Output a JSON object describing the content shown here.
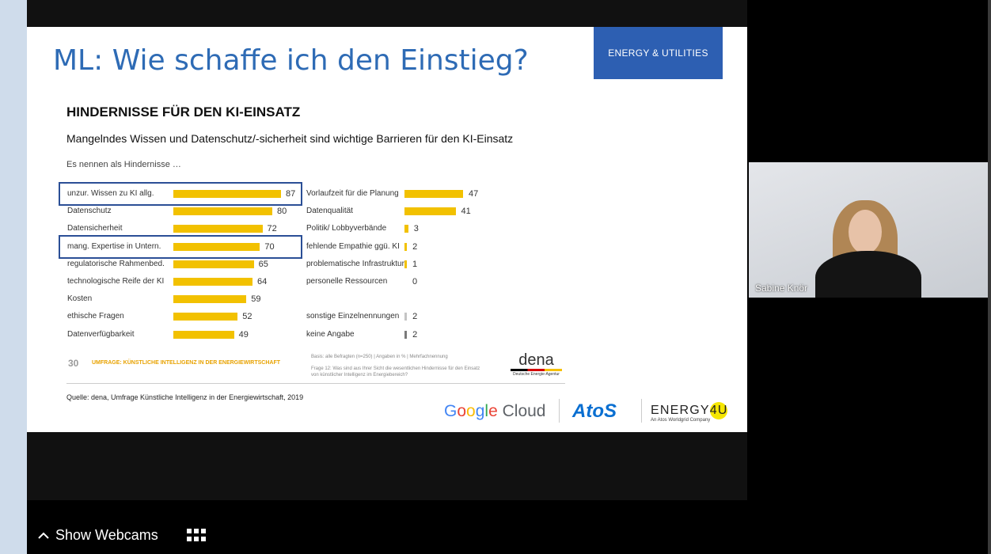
{
  "slide": {
    "title": "ML: Wie schaffe ich den Einstieg?",
    "badge": "ENERGY & UTILITIES",
    "source": "Quelle: dena, Umfrage Künstliche Intelligenz in der Energiewirtschaft, 2019"
  },
  "chart_data": {
    "type": "bar",
    "orientation": "horizontal",
    "title": "HINDERNISSE FÜR DEN KI-EINSATZ",
    "subtitle": "Mangelndes Wissen und Datenschutz/-sicherheit sind wichtige Barrieren für den KI-Einsatz",
    "intro": "Es nennen als Hindernisse …",
    "unit": "%",
    "left_series": {
      "categories": [
        "unzur. Wissen zu KI allg.",
        "Datenschutz",
        "Datensicherheit",
        "mang. Expertise in Untern.",
        "regulatorische Rahmenbed.",
        "technologische Reife der KI",
        "Kosten",
        "ethische Fragen",
        "Datenverfügbarkeit"
      ],
      "values": [
        87,
        80,
        72,
        70,
        65,
        64,
        59,
        52,
        49
      ],
      "highlighted": [
        "unzur. Wissen zu KI allg.",
        "mang. Expertise in Untern."
      ]
    },
    "right_series": {
      "categories": [
        "Vorlaufzeit für die Planung",
        "Datenqualität",
        "Politik/ Lobbyverbände",
        "fehlende Empathie ggü. KI",
        "problematische Infrastruktur",
        "personelle Ressourcen",
        "sonstige Einzelnennungen",
        "keine Angabe"
      ],
      "values": [
        47,
        41,
        3,
        2,
        1,
        0,
        2,
        2
      ]
    },
    "bar_color": "#f2c100",
    "other_bar_color": "#c4c4c4",
    "no_answer_bar_color": "#7a7a7a",
    "page_number": "30",
    "survey_footer": "UMFRAGE: KÜNSTLICHE INTELLIGENZ IN DER ENERGIEWIRTSCHAFT",
    "basis": "Basis: alle Befragten (n=250) | Angaben in % | Mehrfachnennung",
    "question": "Frage 12: Was sind aus Ihrer Sicht die wesentlichen Hindernisse für den Einsatz von künstlicher Intelligenz im Energiebereich?"
  },
  "logos": {
    "dena": "dena",
    "dena_sub": "Deutsche Energie-Agentur",
    "google_cloud": [
      "G",
      "o",
      "o",
      "g",
      "l",
      "e"
    ],
    "google_cloud_suffix": "Cloud",
    "atos": "AtoS",
    "energy4u_prefix": "ENERGY",
    "energy4u_suffix": "4U",
    "energy4u_sub": "An Atos Worldgrid Company"
  },
  "webcam": {
    "participant_name": "Sabine Knör"
  },
  "bottom_bar": {
    "show_webcams_label": "Show Webcams",
    "show_webcams_icon": "chevron-up-icon",
    "layout_icon": "grid-icon"
  },
  "colors": {
    "accent": "#2d5fb2",
    "highlight_box": "#2b4f96",
    "bar": "#f2c100"
  }
}
